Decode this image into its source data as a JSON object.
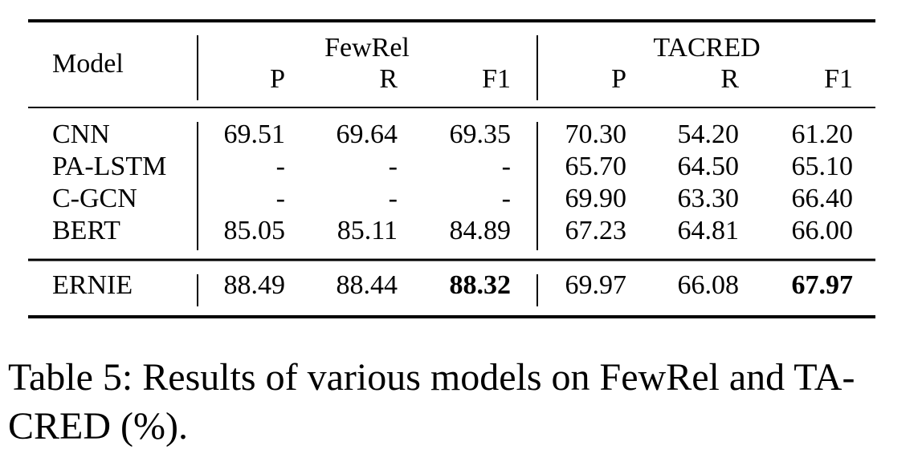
{
  "table": {
    "header": {
      "model": "Model",
      "groups": [
        "FewRel",
        "TACRED"
      ],
      "columns": [
        "P",
        "R",
        "F1",
        "P",
        "R",
        "F1"
      ]
    },
    "rows": [
      {
        "model": "CNN",
        "values": [
          "69.51",
          "69.64",
          "69.35",
          "70.30",
          "54.20",
          "61.20"
        ]
      },
      {
        "model": "PA-LSTM",
        "values": [
          "-",
          "-",
          "-",
          "65.70",
          "64.50",
          "65.10"
        ]
      },
      {
        "model": "C-GCN",
        "values": [
          "-",
          "-",
          "-",
          "69.90",
          "63.30",
          "66.40"
        ]
      },
      {
        "model": "BERT",
        "values": [
          "85.05",
          "85.11",
          "84.89",
          "67.23",
          "64.81",
          "66.00"
        ]
      },
      {
        "model": "ERNIE",
        "values": [
          "88.49",
          "88.44",
          "88.32",
          "69.97",
          "66.08",
          "67.97"
        ]
      }
    ]
  },
  "caption": [
    "Table 5: Results of various models on FewRel and TA-",
    "CRED (%)."
  ]
}
